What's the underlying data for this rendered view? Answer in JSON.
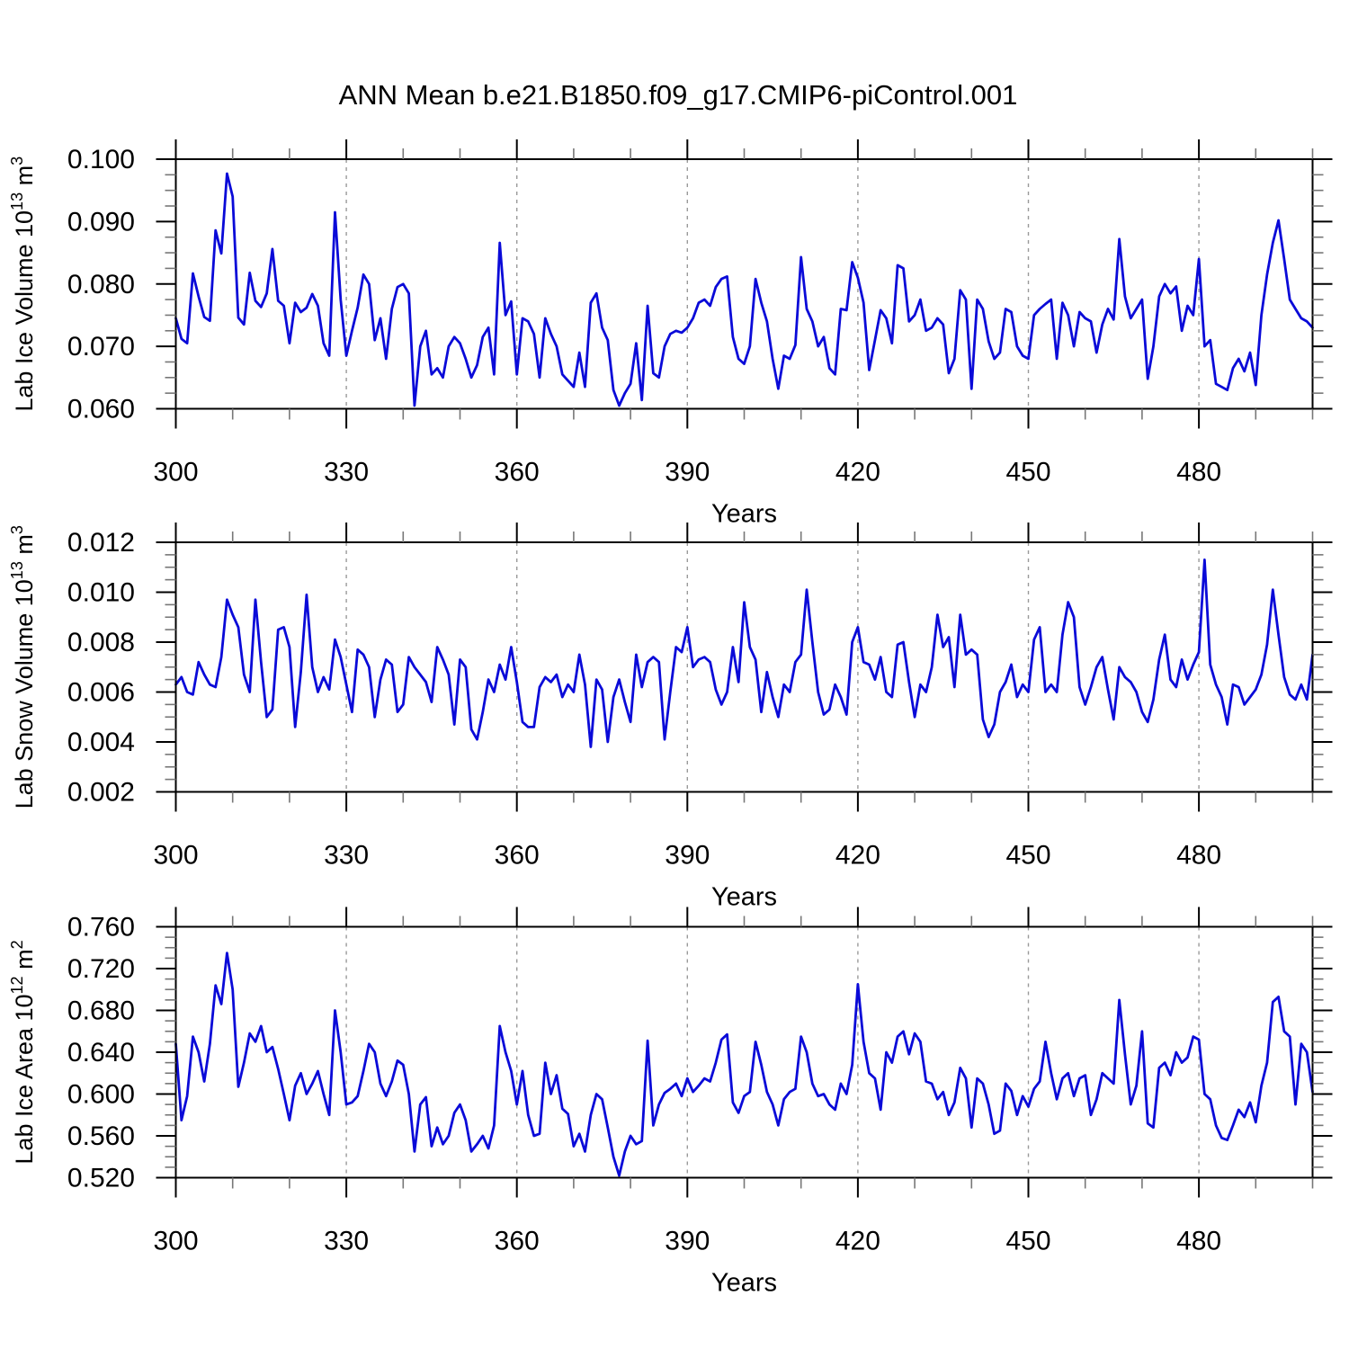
{
  "title": "ANN Mean b.e21.B1850.f09_g17.CMIP6-piControl.001",
  "figure": {
    "line_color": "#0a0ad8",
    "grid_color": "#9a9a9a",
    "axis_color": "#000000",
    "minor_tick_color": "#777777",
    "background": "#ffffff"
  },
  "chart_data": [
    {
      "type": "line",
      "name": "ice-volume",
      "title": "ANN Mean b.e21.B1850.f09_g17.CMIP6-piControl.001",
      "ylabel_text": "Lab Ice Volume 10^13 m^3",
      "ylabel_parts": [
        {
          "t": "Lab Ice Volume 10"
        },
        {
          "t": "13",
          "sup": true
        },
        {
          "t": " m"
        },
        {
          "t": "3",
          "sup": true
        }
      ],
      "xlabel": "Years",
      "legend": "none",
      "grid": "vertical-dashed",
      "xlim": [
        300,
        500
      ],
      "xticks": [
        300,
        330,
        360,
        390,
        420,
        450,
        480
      ],
      "x_minor_step": 10,
      "grid_x": [
        330,
        360,
        390,
        420,
        450,
        480
      ],
      "ylim": [
        0.06,
        0.1
      ],
      "yticks": [
        0.1,
        0.09,
        0.08,
        0.07,
        0.06
      ],
      "ytick_labels": [
        "0.100",
        "0.090",
        "0.080",
        "0.070",
        "0.060"
      ],
      "y_major_step": 0.01,
      "y_minor_step": 0.0025,
      "x_start": 300,
      "x_step": 1,
      "values": [
        0.0745,
        0.0712,
        0.0705,
        0.0817,
        0.078,
        0.0747,
        0.0741,
        0.0886,
        0.0849,
        0.0977,
        0.094,
        0.0746,
        0.0735,
        0.0818,
        0.0773,
        0.0763,
        0.0785,
        0.0856,
        0.0773,
        0.0765,
        0.0705,
        0.077,
        0.0755,
        0.0762,
        0.0784,
        0.0765,
        0.0705,
        0.0685,
        0.0915,
        0.0775,
        0.0685,
        0.0725,
        0.0762,
        0.0815,
        0.08,
        0.071,
        0.0745,
        0.068,
        0.076,
        0.0795,
        0.08,
        0.0785,
        0.0605,
        0.07,
        0.0725,
        0.0655,
        0.0665,
        0.065,
        0.07,
        0.0715,
        0.0705,
        0.068,
        0.065,
        0.067,
        0.0715,
        0.073,
        0.0655,
        0.0866,
        0.075,
        0.0772,
        0.0655,
        0.0745,
        0.074,
        0.072,
        0.065,
        0.0745,
        0.072,
        0.07,
        0.0655,
        0.0645,
        0.0635,
        0.069,
        0.0635,
        0.077,
        0.0785,
        0.073,
        0.071,
        0.063,
        0.0605,
        0.0625,
        0.064,
        0.0705,
        0.0614,
        0.0765,
        0.0657,
        0.065,
        0.07,
        0.072,
        0.0725,
        0.0722,
        0.073,
        0.0745,
        0.077,
        0.0775,
        0.0765,
        0.0795,
        0.0808,
        0.0812,
        0.0715,
        0.068,
        0.0672,
        0.07,
        0.0808,
        0.077,
        0.074,
        0.068,
        0.0632,
        0.0685,
        0.068,
        0.0702,
        0.0843,
        0.076,
        0.074,
        0.07,
        0.0715,
        0.0665,
        0.0655,
        0.076,
        0.0758,
        0.0835,
        0.081,
        0.077,
        0.0662,
        0.071,
        0.0758,
        0.0745,
        0.0705,
        0.083,
        0.0825,
        0.074,
        0.075,
        0.0775,
        0.0725,
        0.073,
        0.0745,
        0.0735,
        0.0657,
        0.068,
        0.079,
        0.0775,
        0.0632,
        0.0775,
        0.076,
        0.0708,
        0.068,
        0.069,
        0.076,
        0.0755,
        0.07,
        0.0685,
        0.068,
        0.075,
        0.076,
        0.0768,
        0.0775,
        0.068,
        0.077,
        0.075,
        0.07,
        0.0755,
        0.0745,
        0.074,
        0.069,
        0.0735,
        0.076,
        0.0743,
        0.0872,
        0.078,
        0.0745,
        0.076,
        0.0775,
        0.0648,
        0.07,
        0.078,
        0.08,
        0.0785,
        0.0796,
        0.0725,
        0.0765,
        0.075,
        0.084,
        0.07,
        0.071,
        0.064,
        0.0635,
        0.063,
        0.0665,
        0.068,
        0.066,
        0.069,
        0.0638,
        0.075,
        0.0815,
        0.0866,
        0.0902,
        0.084,
        0.0775,
        0.076,
        0.0745,
        0.074,
        0.073
      ]
    },
    {
      "type": "line",
      "name": "snow-volume",
      "ylabel_text": "Lab Snow Volume 10^13 m^3",
      "ylabel_parts": [
        {
          "t": "Lab Snow Volume 10"
        },
        {
          "t": "13",
          "sup": true
        },
        {
          "t": " m"
        },
        {
          "t": "3",
          "sup": true
        }
      ],
      "xlabel": "Years",
      "legend": "none",
      "grid": "vertical-dashed",
      "xlim": [
        300,
        500
      ],
      "xticks": [
        300,
        330,
        360,
        390,
        420,
        450,
        480
      ],
      "x_minor_step": 10,
      "grid_x": [
        330,
        360,
        390,
        420,
        450,
        480
      ],
      "ylim": [
        0.002,
        0.012
      ],
      "yticks": [
        0.012,
        0.01,
        0.008,
        0.006,
        0.004,
        0.002
      ],
      "ytick_labels": [
        "0.012",
        "0.010",
        "0.008",
        "0.006",
        "0.004",
        "0.002"
      ],
      "y_major_step": 0.002,
      "y_minor_step": 0.0005,
      "x_start": 300,
      "x_step": 1,
      "values": [
        0.0063,
        0.0066,
        0.006,
        0.0059,
        0.0072,
        0.0067,
        0.0063,
        0.0062,
        0.0074,
        0.0097,
        0.0091,
        0.0086,
        0.0067,
        0.006,
        0.0097,
        0.0072,
        0.005,
        0.0053,
        0.0085,
        0.0086,
        0.0078,
        0.0046,
        0.0068,
        0.0099,
        0.007,
        0.006,
        0.0066,
        0.0061,
        0.0081,
        0.0074,
        0.0063,
        0.0052,
        0.0077,
        0.0075,
        0.007,
        0.005,
        0.0065,
        0.0073,
        0.0071,
        0.0052,
        0.0055,
        0.0074,
        0.007,
        0.0067,
        0.0064,
        0.0056,
        0.0078,
        0.0073,
        0.0067,
        0.0047,
        0.0073,
        0.007,
        0.0045,
        0.0041,
        0.0052,
        0.0065,
        0.006,
        0.0071,
        0.0065,
        0.0078,
        0.0064,
        0.0048,
        0.0046,
        0.0046,
        0.0062,
        0.0066,
        0.0064,
        0.0067,
        0.0058,
        0.0063,
        0.006,
        0.0075,
        0.0063,
        0.0038,
        0.0065,
        0.0061,
        0.004,
        0.0058,
        0.0065,
        0.0056,
        0.0048,
        0.0075,
        0.0062,
        0.0072,
        0.0074,
        0.0072,
        0.0041,
        0.006,
        0.0078,
        0.0076,
        0.0086,
        0.007,
        0.0073,
        0.0074,
        0.0072,
        0.0061,
        0.0055,
        0.006,
        0.0078,
        0.0064,
        0.0096,
        0.0078,
        0.0073,
        0.0052,
        0.0068,
        0.0058,
        0.005,
        0.0063,
        0.006,
        0.0072,
        0.0075,
        0.0101,
        0.008,
        0.006,
        0.0051,
        0.0053,
        0.0063,
        0.0058,
        0.0051,
        0.008,
        0.0086,
        0.0072,
        0.0071,
        0.0065,
        0.0074,
        0.006,
        0.0058,
        0.0079,
        0.008,
        0.0064,
        0.005,
        0.0063,
        0.006,
        0.007,
        0.0091,
        0.0078,
        0.0082,
        0.0062,
        0.0091,
        0.0075,
        0.0077,
        0.0075,
        0.0049,
        0.0042,
        0.0047,
        0.006,
        0.0064,
        0.0071,
        0.0058,
        0.0063,
        0.006,
        0.0081,
        0.0086,
        0.006,
        0.0063,
        0.006,
        0.0083,
        0.0096,
        0.009,
        0.0062,
        0.0055,
        0.0062,
        0.007,
        0.0074,
        0.0061,
        0.0049,
        0.007,
        0.0066,
        0.0064,
        0.006,
        0.0052,
        0.0048,
        0.0057,
        0.0073,
        0.0083,
        0.0065,
        0.0062,
        0.0073,
        0.0065,
        0.0071,
        0.0076,
        0.0113,
        0.0071,
        0.0063,
        0.0058,
        0.0047,
        0.0063,
        0.0062,
        0.0055,
        0.0058,
        0.0061,
        0.0067,
        0.0079,
        0.0101,
        0.0083,
        0.0066,
        0.0059,
        0.0057,
        0.0063,
        0.0057,
        0.0075
      ]
    },
    {
      "type": "line",
      "name": "ice-area",
      "ylabel_text": "Lab Ice Area 10^12 m^2",
      "ylabel_parts": [
        {
          "t": "Lab Ice Area 10"
        },
        {
          "t": "12",
          "sup": true
        },
        {
          "t": " m"
        },
        {
          "t": "2",
          "sup": true
        }
      ],
      "xlabel": "Years",
      "legend": "none",
      "grid": "vertical-dashed",
      "xlim": [
        300,
        500
      ],
      "xticks": [
        300,
        330,
        360,
        390,
        420,
        450,
        480
      ],
      "x_minor_step": 10,
      "grid_x": [
        330,
        360,
        390,
        420,
        450,
        480
      ],
      "ylim": [
        0.52,
        0.76
      ],
      "yticks": [
        0.76,
        0.72,
        0.68,
        0.64,
        0.6,
        0.56,
        0.52
      ],
      "ytick_labels": [
        "0.760",
        "0.720",
        "0.680",
        "0.640",
        "0.600",
        "0.560",
        "0.520"
      ],
      "y_major_step": 0.04,
      "y_minor_step": 0.01,
      "x_start": 300,
      "x_step": 1,
      "values": [
        0.648,
        0.575,
        0.598,
        0.655,
        0.64,
        0.612,
        0.648,
        0.704,
        0.686,
        0.735,
        0.7,
        0.607,
        0.63,
        0.658,
        0.65,
        0.665,
        0.64,
        0.645,
        0.624,
        0.6,
        0.575,
        0.608,
        0.62,
        0.6,
        0.61,
        0.622,
        0.6,
        0.58,
        0.68,
        0.64,
        0.59,
        0.592,
        0.598,
        0.622,
        0.648,
        0.64,
        0.61,
        0.598,
        0.612,
        0.632,
        0.628,
        0.6,
        0.545,
        0.59,
        0.597,
        0.55,
        0.568,
        0.552,
        0.56,
        0.582,
        0.59,
        0.575,
        0.545,
        0.552,
        0.56,
        0.548,
        0.57,
        0.665,
        0.64,
        0.622,
        0.59,
        0.622,
        0.58,
        0.56,
        0.562,
        0.63,
        0.6,
        0.618,
        0.586,
        0.581,
        0.55,
        0.562,
        0.545,
        0.58,
        0.6,
        0.595,
        0.568,
        0.54,
        0.522,
        0.545,
        0.56,
        0.552,
        0.555,
        0.651,
        0.57,
        0.59,
        0.601,
        0.605,
        0.61,
        0.598,
        0.615,
        0.602,
        0.608,
        0.615,
        0.612,
        0.63,
        0.652,
        0.657,
        0.592,
        0.582,
        0.598,
        0.602,
        0.65,
        0.628,
        0.602,
        0.59,
        0.57,
        0.595,
        0.602,
        0.605,
        0.655,
        0.64,
        0.61,
        0.598,
        0.6,
        0.59,
        0.585,
        0.61,
        0.6,
        0.628,
        0.705,
        0.65,
        0.62,
        0.615,
        0.585,
        0.64,
        0.63,
        0.655,
        0.66,
        0.638,
        0.658,
        0.65,
        0.612,
        0.61,
        0.595,
        0.602,
        0.58,
        0.592,
        0.625,
        0.615,
        0.568,
        0.615,
        0.61,
        0.59,
        0.562,
        0.565,
        0.61,
        0.603,
        0.58,
        0.598,
        0.588,
        0.605,
        0.612,
        0.65,
        0.62,
        0.595,
        0.615,
        0.62,
        0.598,
        0.615,
        0.618,
        0.58,
        0.595,
        0.62,
        0.615,
        0.61,
        0.69,
        0.638,
        0.59,
        0.608,
        0.66,
        0.572,
        0.568,
        0.625,
        0.63,
        0.618,
        0.64,
        0.63,
        0.635,
        0.655,
        0.652,
        0.6,
        0.595,
        0.57,
        0.558,
        0.556,
        0.57,
        0.585,
        0.578,
        0.592,
        0.573,
        0.608,
        0.63,
        0.688,
        0.693,
        0.66,
        0.655,
        0.59,
        0.648,
        0.64,
        0.602
      ]
    }
  ]
}
